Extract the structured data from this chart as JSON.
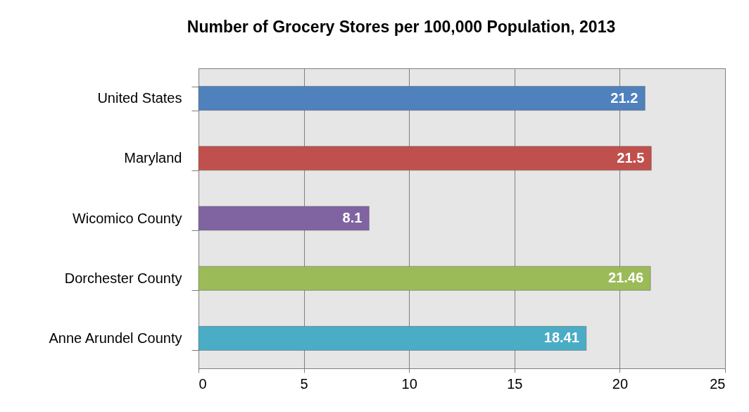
{
  "chart_data": {
    "type": "bar",
    "orientation": "horizontal",
    "title": "Number of Grocery Stores per 100,000 Population, 2013",
    "categories": [
      "United States",
      "Maryland",
      "Wicomico County",
      "Dorchester County",
      "Anne Arundel County"
    ],
    "values": [
      21.2,
      21.5,
      8.1,
      21.46,
      18.41
    ],
    "colors": [
      "#4f81bd",
      "#c0504d",
      "#8064a2",
      "#9bbb59",
      "#4bacc6"
    ],
    "xlim": [
      0,
      25
    ],
    "xticks": [
      0,
      5,
      10,
      15,
      20,
      25
    ],
    "grid": "x",
    "data_labels": true
  }
}
